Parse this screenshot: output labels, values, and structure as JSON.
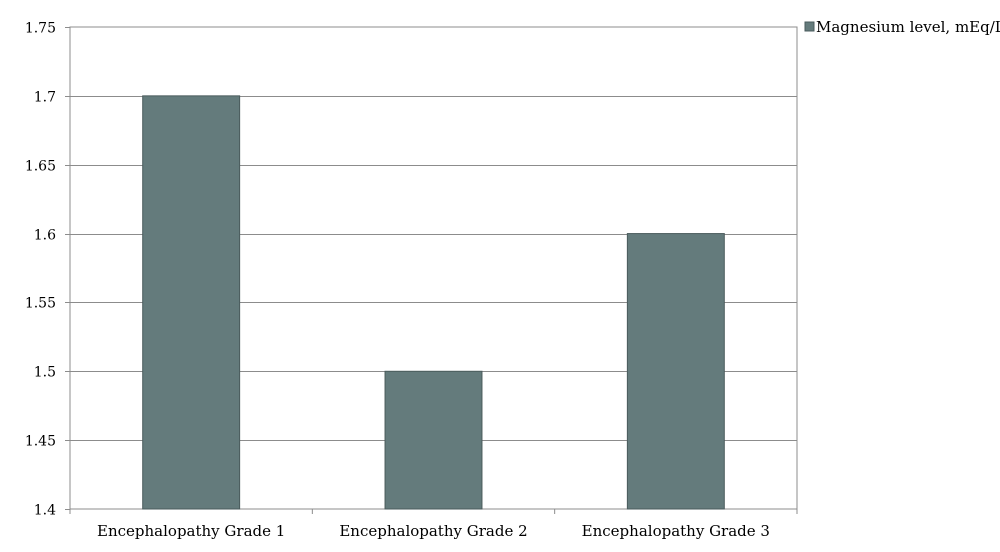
{
  "chart_data": {
    "type": "bar",
    "categories": [
      "Encephalopathy Grade 1",
      "Encephalopathy Grade 2",
      "Encephalopathy Grade 3"
    ],
    "series": [
      {
        "name": "Magnesium level, mEq/L",
        "values": [
          1.7,
          1.5,
          1.6
        ],
        "color": "#647b7c"
      }
    ],
    "ylim": [
      1.4,
      1.75
    ],
    "yticks": [
      1.4,
      1.45,
      1.5,
      1.55,
      1.6,
      1.65,
      1.7,
      1.75
    ],
    "ytick_labels": [
      "1.4",
      "1.45",
      "1.5",
      "1.55",
      "1.6",
      "1.65",
      "1.7",
      "1.75"
    ],
    "grid": true,
    "legend_position": "top-right"
  }
}
